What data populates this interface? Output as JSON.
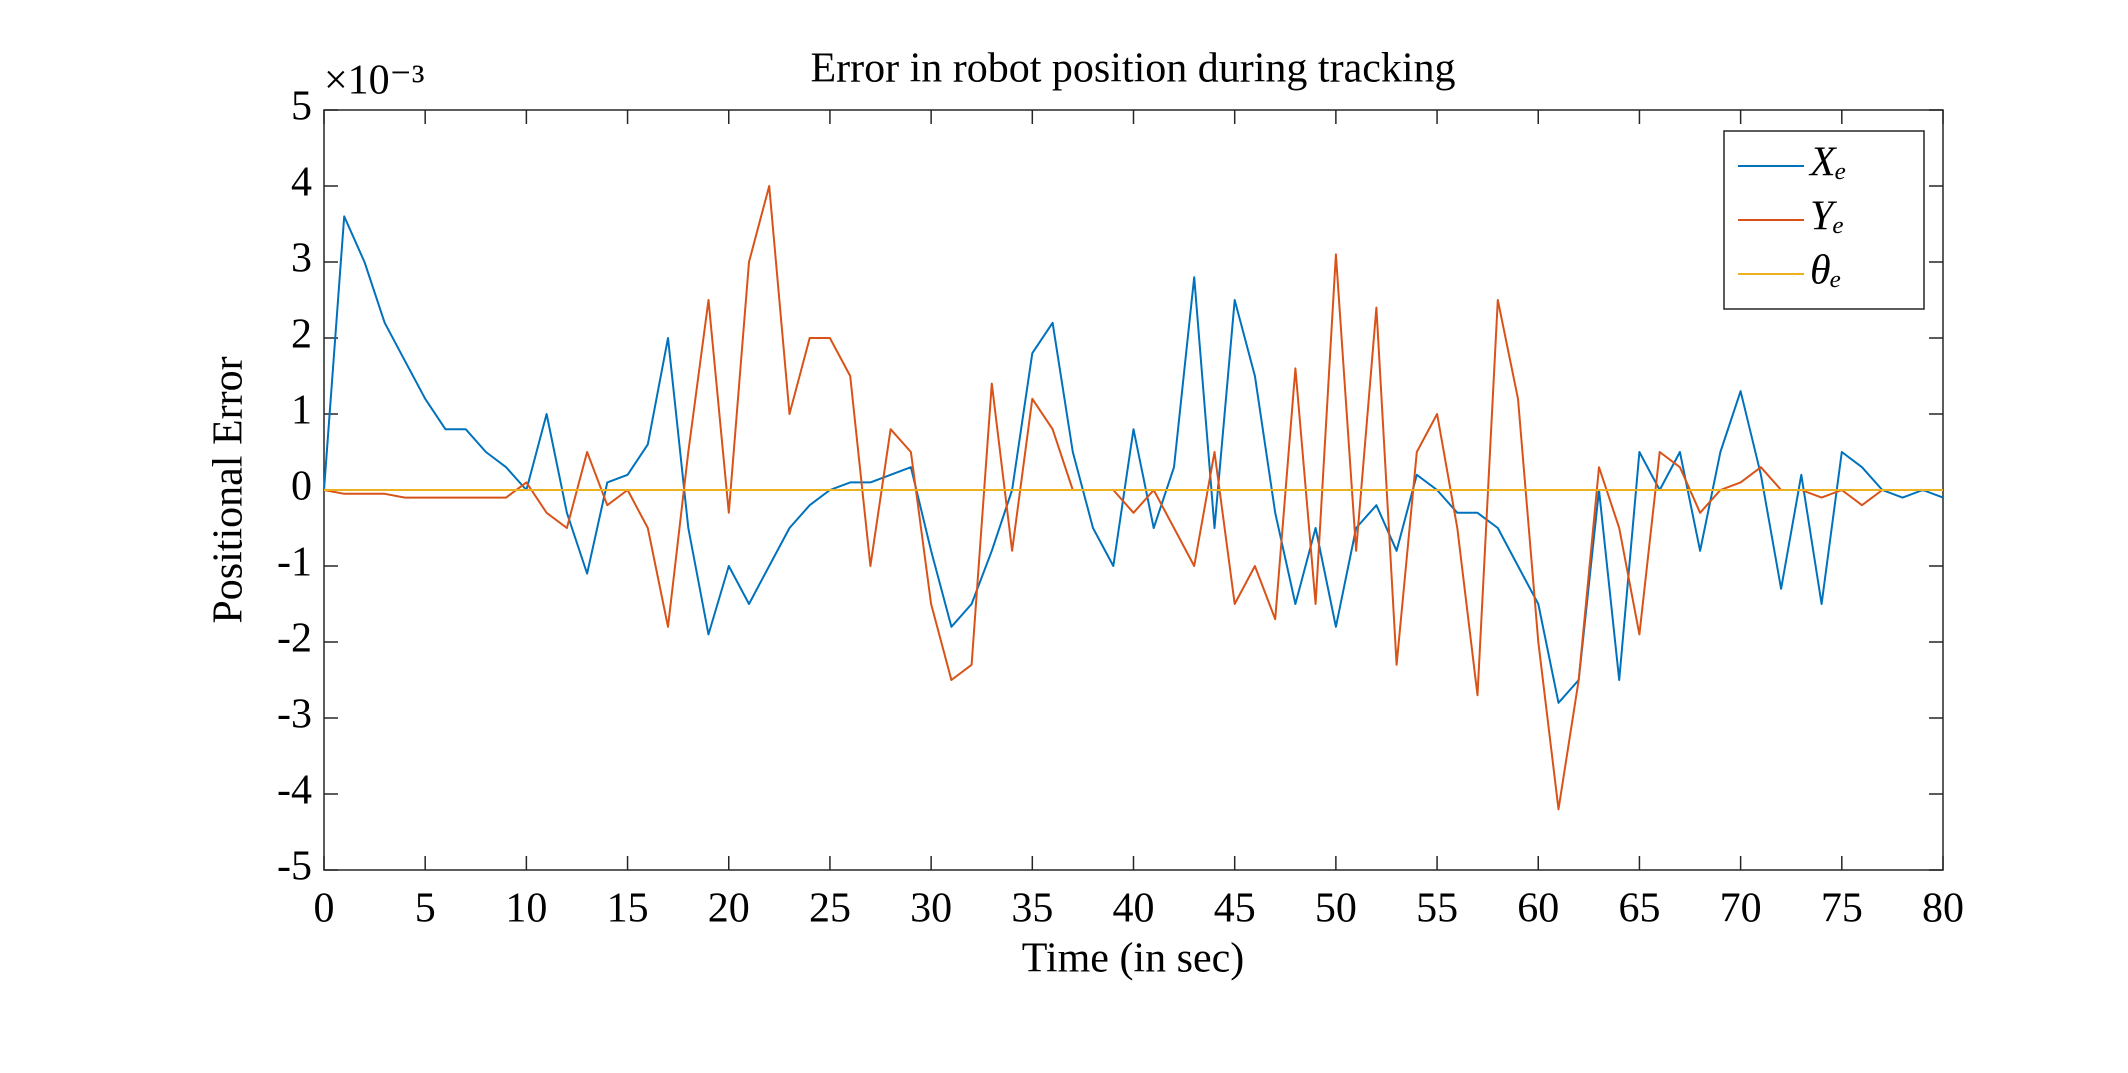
{
  "chart_data": {
    "type": "line",
    "title": "Error in robot position during tracking",
    "x_label": "Time (in sec)",
    "y_label": "Positional Error",
    "y_exponent_label": "×10⁻³",
    "x": [
      0,
      1,
      2,
      3,
      4,
      5,
      6,
      7,
      8,
      9,
      10,
      11,
      12,
      13,
      14,
      15,
      16,
      17,
      18,
      19,
      20,
      21,
      22,
      23,
      24,
      25,
      26,
      27,
      28,
      29,
      30,
      31,
      32,
      33,
      34,
      35,
      36,
      37,
      38,
      39,
      40,
      41,
      42,
      43,
      44,
      45,
      46,
      47,
      48,
      49,
      50,
      51,
      52,
      53,
      54,
      55,
      56,
      57,
      58,
      59,
      60,
      61,
      62,
      63,
      64,
      65,
      66,
      67,
      68,
      69,
      70,
      71,
      72,
      73,
      74,
      75,
      76,
      77,
      78,
      79,
      80
    ],
    "series": [
      {
        "name": "Xₑ",
        "color": "#0072bd",
        "values": [
          0,
          3.6,
          3.0,
          2.2,
          1.7,
          1.2,
          0.8,
          0.8,
          0.5,
          0.3,
          0.0,
          1.0,
          -0.3,
          -1.1,
          0.1,
          0.2,
          0.6,
          2.0,
          -0.5,
          -1.9,
          -1.0,
          -1.5,
          -1.0,
          -0.5,
          -0.2,
          0.0,
          0.1,
          0.1,
          0.2,
          0.3,
          -0.8,
          -1.8,
          -1.5,
          -0.8,
          0.0,
          1.8,
          2.2,
          0.5,
          -0.5,
          -1.0,
          0.8,
          -0.5,
          0.3,
          2.8,
          -0.5,
          2.5,
          1.5,
          -0.3,
          -1.5,
          -0.5,
          -1.8,
          -0.5,
          -0.2,
          -0.8,
          0.2,
          0.0,
          -0.3,
          -0.3,
          -0.5,
          -1.0,
          -1.5,
          -2.8,
          -2.5,
          0.0,
          -2.5,
          0.5,
          0.0,
          0.5,
          -0.8,
          0.5,
          1.3,
          0.2,
          -1.3,
          0.2,
          -1.5,
          0.5,
          0.3,
          0.0,
          -0.1,
          0.0,
          -0.1
        ]
      },
      {
        "name": "Yₑ",
        "color": "#d95319",
        "values": [
          0,
          -0.05,
          -0.05,
          -0.05,
          -0.1,
          -0.1,
          -0.1,
          -0.1,
          -0.1,
          -0.1,
          0.1,
          -0.3,
          -0.5,
          0.5,
          -0.2,
          0.0,
          -0.5,
          -1.8,
          0.5,
          2.5,
          -0.3,
          3.0,
          4.0,
          1.0,
          2.0,
          2.0,
          1.5,
          -1.0,
          0.8,
          0.5,
          -1.5,
          -2.5,
          -2.3,
          1.4,
          -0.8,
          1.2,
          0.8,
          0.0,
          0.0,
          0.0,
          -0.3,
          0.0,
          -0.5,
          -1.0,
          0.5,
          -1.5,
          -1.0,
          -1.7,
          1.6,
          -1.5,
          3.1,
          -0.8,
          2.4,
          -2.3,
          0.5,
          1.0,
          -0.5,
          -2.7,
          2.5,
          1.2,
          -2.0,
          -4.2,
          -2.5,
          0.3,
          -0.5,
          -1.9,
          0.5,
          0.3,
          -0.3,
          0.0,
          0.1,
          0.3,
          0.0,
          0.0,
          -0.1,
          0.0,
          -0.2,
          0.0,
          0.0,
          0.0,
          0.0
        ]
      },
      {
        "name": "θₑ",
        "color": "#edb120",
        "values": [
          0,
          0,
          0,
          0,
          0,
          0,
          0,
          0,
          0,
          0,
          0,
          0,
          0,
          0,
          0,
          0,
          0,
          0,
          0,
          0,
          0,
          0,
          0,
          0,
          0,
          0,
          0,
          0,
          0,
          0,
          0,
          0,
          0,
          0,
          0,
          0,
          0,
          0,
          0,
          0,
          0,
          0,
          0,
          0,
          0,
          0,
          0,
          0,
          0,
          0,
          0,
          0,
          0,
          0,
          0,
          0,
          0,
          0,
          0,
          0,
          0,
          0,
          0,
          0,
          0,
          0,
          0,
          0,
          0,
          0,
          0,
          0,
          0,
          0,
          0,
          0,
          0,
          0,
          0,
          0,
          0
        ]
      }
    ],
    "xlim": [
      0,
      80
    ],
    "xticks": [
      0,
      5,
      10,
      15,
      20,
      25,
      30,
      35,
      40,
      45,
      50,
      55,
      60,
      65,
      70,
      75,
      80
    ],
    "ylim": [
      -5,
      5
    ],
    "yticks": [
      -5,
      -4,
      -3,
      -2,
      -1,
      0,
      1,
      2,
      3,
      4,
      5
    ],
    "grid": false,
    "legend": "upper right"
  }
}
